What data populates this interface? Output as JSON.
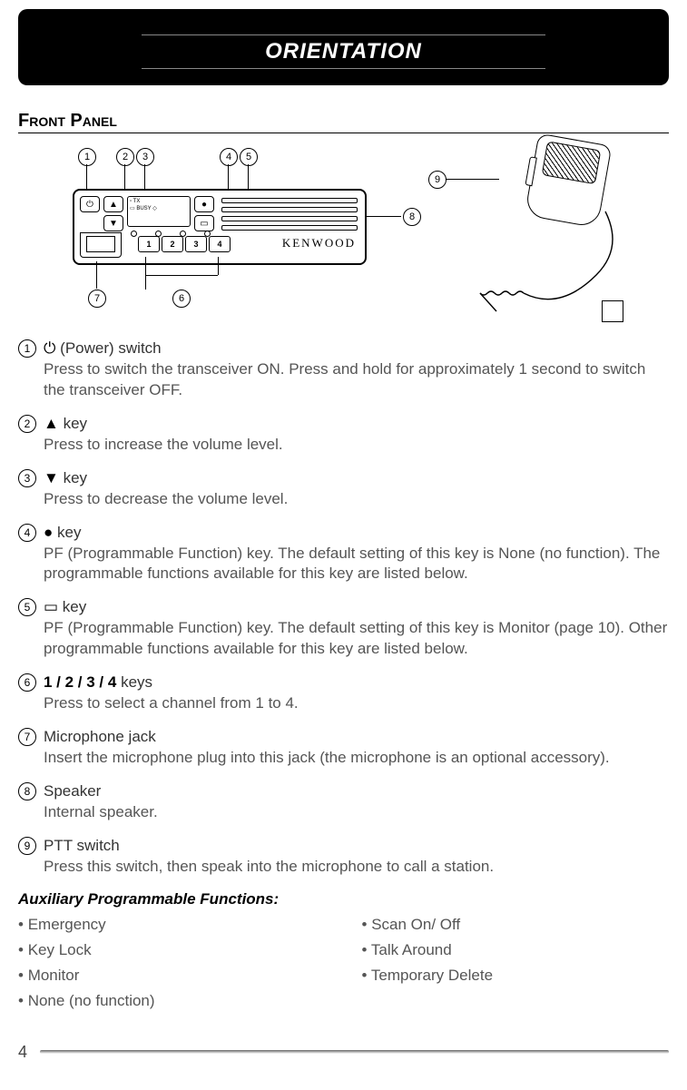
{
  "banner": {
    "title": "ORIENTATION"
  },
  "sectionHeading": "Front Panel",
  "diagram": {
    "brand": "KENWOOD",
    "screen_lines": [
      "▫ TX",
      "▭ BUSY   ◇"
    ],
    "num_buttons": [
      "1",
      "2",
      "3",
      "4"
    ],
    "callouts": {
      "c1": "1",
      "c2": "2",
      "c3": "3",
      "c4": "4",
      "c5": "5",
      "c6": "6",
      "c7": "7",
      "c8": "8",
      "c9": "9"
    }
  },
  "items": [
    {
      "num": "1",
      "titleIcon": "⏻",
      "titleText": "(Power) switch",
      "desc": "Press to switch the transceiver ON.  Press and hold for approximately 1 second to switch the transceiver OFF."
    },
    {
      "num": "2",
      "titleIcon": "▲",
      "titleText": "key",
      "desc": "Press to increase the volume level."
    },
    {
      "num": "3",
      "titleIcon": "▼",
      "titleText": "key",
      "desc": "Press to decrease the volume level."
    },
    {
      "num": "4",
      "titleIcon": "●",
      "titleText": "key",
      "desc": "PF (Programmable Function) key.  The default setting of this key is None (no function).  The programmable functions available for this key are listed below."
    },
    {
      "num": "5",
      "titleIcon": "▭",
      "titleText": "key",
      "desc": "PF (Programmable Function) key.  The default setting of this key is Monitor (page 10).  Other programmable functions available for this key are listed below."
    },
    {
      "num": "6",
      "titleBold": "1 / 2 / 3 / 4",
      "titleText": "keys",
      "desc": "Press to select a channel from 1 to 4."
    },
    {
      "num": "7",
      "titleText": "Microphone jack",
      "desc": "Insert the microphone plug into this jack (the microphone is an optional accessory)."
    },
    {
      "num": "8",
      "titleText": "Speaker",
      "desc": "Internal speaker."
    },
    {
      "num": "9",
      "titleText": "PTT switch",
      "desc": "Press this switch, then speak into the microphone to call a station."
    }
  ],
  "aux": {
    "heading": "Auxiliary Programmable Functions:",
    "left": [
      "Emergency",
      "Key Lock",
      "Monitor",
      "None (no function)"
    ],
    "right": [
      "Scan On/ Off",
      "Talk Around",
      "Temporary Delete"
    ]
  },
  "footer": {
    "page": "4"
  }
}
